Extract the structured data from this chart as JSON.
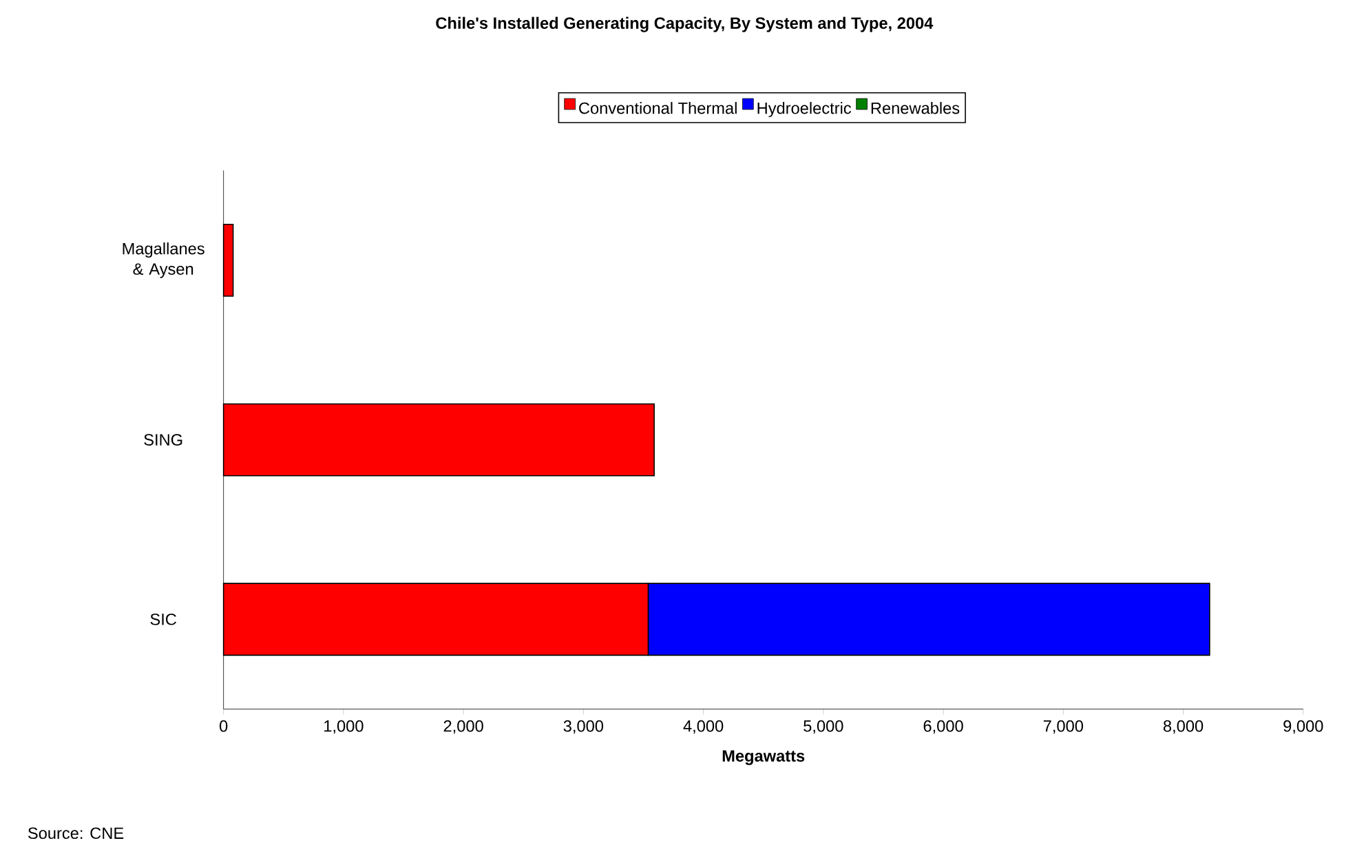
{
  "chart_data": {
    "type": "bar",
    "orientation": "horizontal",
    "stacked": true,
    "title": "Chile's Installed Generating Capacity, By System and Type, 2004",
    "xlabel": "Megawatts",
    "annotations": [
      "Source: CNE"
    ],
    "categories": [
      "Magallanes & Aysen",
      "SING",
      "SIC"
    ],
    "series": [
      {
        "name": "Conventional Thermal",
        "color": "#ff0000",
        "values": [
          80,
          3590,
          3540
        ]
      },
      {
        "name": "Hydroelectric",
        "color": "#0000ff",
        "values": [
          null,
          null,
          4680
        ]
      },
      {
        "name": "Renewables",
        "color": "#008000",
        "values": [
          null,
          null,
          null
        ]
      }
    ],
    "xlim": [
      0,
      9000
    ],
    "xticks": [
      0,
      {
        "value": 1000,
        "label": "1,000"
      },
      {
        "value": 2000,
        "label": "2,000"
      },
      {
        "value": 3000,
        "label": "3,000"
      },
      {
        "value": 4000,
        "label": "4,000"
      },
      {
        "value": 5000,
        "label": "5,000"
      },
      {
        "value": 6000,
        "label": "6,000"
      },
      {
        "value": 7000,
        "label": "7,000"
      },
      {
        "value": 8000,
        "label": "8,000"
      },
      {
        "value": 9000,
        "label": "9,000"
      }
    ],
    "legend": "top",
    "grid": false
  }
}
